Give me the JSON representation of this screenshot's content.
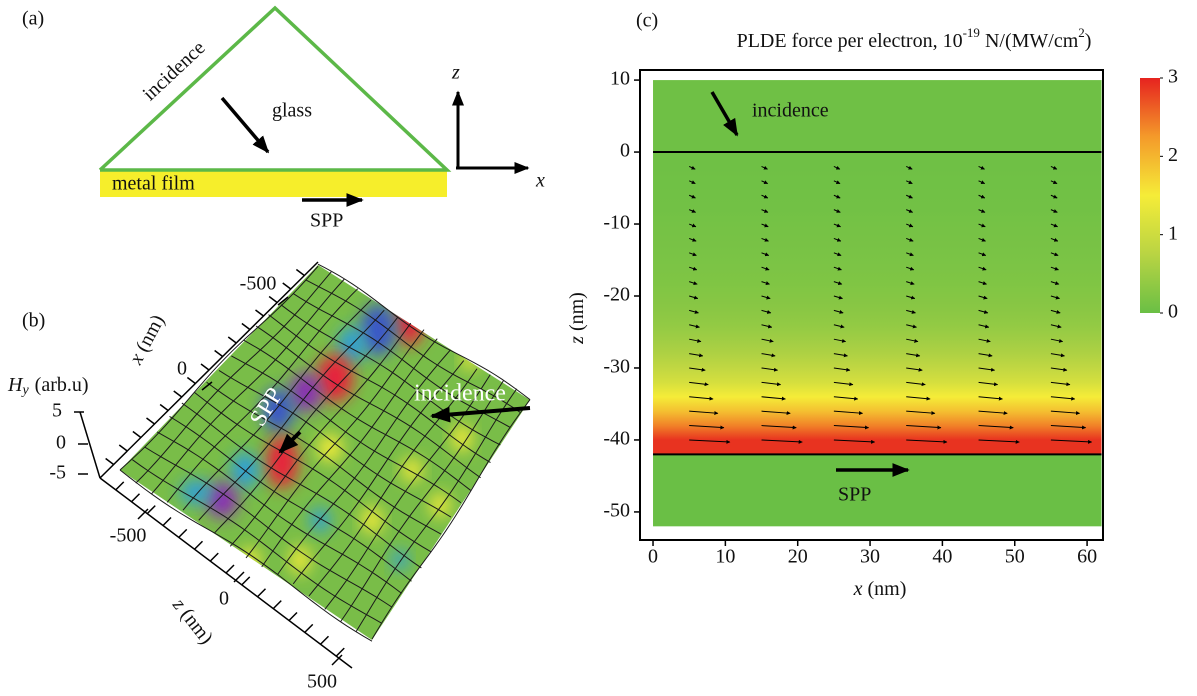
{
  "panel_a": {
    "label": "(a)",
    "incidence": "incidence",
    "glass": "glass",
    "metal_film": "metal film",
    "spp": "SPP",
    "z_axis": "z",
    "x_axis": "x"
  },
  "panel_b": {
    "label": "(b)",
    "hy_symbol": "H",
    "hy_subscript": "y",
    "hy_unit": "(arb.u)",
    "hy_ticks": [
      5,
      0,
      -5
    ],
    "x_symbol": "x",
    "x_unit": "(nm)",
    "x_ticks": [
      -500,
      0
    ],
    "z_symbol": "z",
    "z_unit": "(nm)",
    "z_ticks": [
      -500,
      0,
      500
    ],
    "spp": "SPP",
    "incidence": "incidence"
  },
  "panel_c": {
    "label": "(c)",
    "title": [
      "PLDE force per electron, 10",
      "-19",
      " N/(MW/cm",
      "2",
      ")"
    ],
    "xlim": [
      -1.8,
      62.2
    ],
    "ylim": [
      -53.9,
      11.4
    ],
    "xticks": [
      0,
      10,
      20,
      30,
      40,
      50,
      60
    ],
    "yticks": [
      10,
      0,
      -10,
      -20,
      -30,
      -40,
      -50
    ],
    "x_symbol": "x",
    "x_unit": "(nm)",
    "z_symbol": "z",
    "z_unit": "(nm)",
    "field_xlim": [
      0,
      62
    ],
    "field_zlim": [
      -52,
      10
    ],
    "interfaces": [
      0,
      -42
    ],
    "colorbar": {
      "lim": [
        0,
        3
      ],
      "ticks": [
        0,
        1,
        2,
        3
      ],
      "colors": [
        "#6abf45",
        "#b9d443",
        "#f5ec38",
        "#f49a2a",
        "#e6231f"
      ]
    },
    "incidence": "incidence",
    "spp": "SPP",
    "arrows": {
      "x": [
        5,
        15,
        25,
        35,
        45,
        55
      ],
      "z": [
        -2,
        -4,
        -6,
        -8,
        -10,
        -12,
        -14,
        -16,
        -18,
        -20,
        -22,
        -24,
        -26,
        -28,
        -30,
        -32,
        -34,
        -36,
        -38,
        -40
      ],
      "force": [
        0.05,
        0.06,
        0.07,
        0.08,
        0.1,
        0.12,
        0.14,
        0.17,
        0.2,
        0.25,
        0.3,
        0.38,
        0.5,
        0.65,
        0.85,
        1.1,
        1.5,
        1.9,
        2.4,
        2.9
      ]
    }
  }
}
